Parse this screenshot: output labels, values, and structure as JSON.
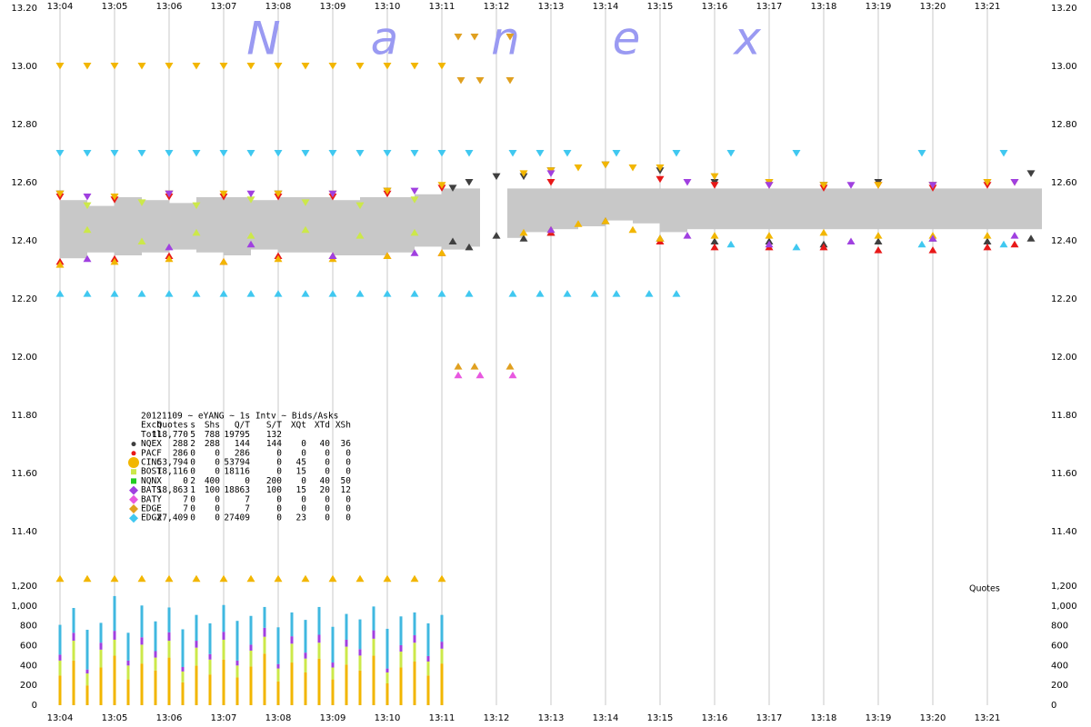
{
  "watermark": [
    "N",
    "a",
    "n",
    "e",
    "x"
  ],
  "legend_table": {
    "title": "20121109 ~ eYANG ~ 1s Intv ~ Bids/Asks",
    "columns": [
      "Exch",
      "Quotes",
      "s",
      "Shs",
      "Q/T",
      "S/T",
      "XQt",
      "XTd",
      "XSh"
    ],
    "total": {
      "label": "Totl",
      "stats": [
        "118,770",
        "5",
        "788",
        "19795",
        "132"
      ]
    }
  },
  "chart_data": [
    {
      "type": "band",
      "xlim": [
        784,
        802
      ],
      "xticks": [
        {
          "value": 784,
          "label": "13:04"
        },
        {
          "value": 785,
          "label": "13:05"
        },
        {
          "value": 786,
          "label": "13:06"
        },
        {
          "value": 787,
          "label": "13:07"
        },
        {
          "value": 788,
          "label": "13:08"
        },
        {
          "value": 789,
          "label": "13:09"
        },
        {
          "value": 790,
          "label": "13:10"
        },
        {
          "value": 791,
          "label": "13:11"
        },
        {
          "value": 792,
          "label": "13:12"
        },
        {
          "value": 793,
          "label": "13:13"
        },
        {
          "value": 794,
          "label": "13:14"
        },
        {
          "value": 795,
          "label": "13:15"
        },
        {
          "value": 796,
          "label": "13:16"
        },
        {
          "value": 797,
          "label": "13:17"
        },
        {
          "value": 798,
          "label": "13:18"
        },
        {
          "value": 799,
          "label": "13:19"
        },
        {
          "value": 800,
          "label": "13:20"
        },
        {
          "value": 801,
          "label": "13:21"
        }
      ],
      "ylim": [
        11.2,
        13.2
      ],
      "yticks": [
        {
          "value": 11.4,
          "label": "11.40"
        },
        {
          "value": 11.6,
          "label": "11.60"
        },
        {
          "value": 11.8,
          "label": "11.80"
        },
        {
          "value": 12.0,
          "label": "12.00"
        },
        {
          "value": 12.2,
          "label": "12.20"
        },
        {
          "value": 12.4,
          "label": "12.40"
        },
        {
          "value": 12.6,
          "label": "12.60"
        },
        {
          "value": 12.8,
          "label": "12.80"
        },
        {
          "value": 13.0,
          "label": "13.00"
        },
        {
          "value": 13.2,
          "label": "13.20"
        }
      ],
      "grid": true,
      "band_color": "#c8c8c8",
      "x": [
        784,
        784.5,
        785,
        785.5,
        786,
        786.5,
        787,
        787.5,
        788,
        788.5,
        789,
        789.5,
        790,
        790.5,
        791,
        791.5,
        791.7,
        792.2,
        792.5,
        793,
        793.5,
        794,
        794.5,
        795,
        795.5,
        796,
        797,
        798,
        799,
        800,
        801,
        801.75
      ],
      "ask": [
        12.54,
        12.52,
        12.55,
        12.54,
        12.53,
        12.55,
        12.55,
        12.54,
        12.55,
        12.55,
        12.54,
        12.55,
        12.55,
        12.56,
        12.58,
        12.58,
        null,
        12.58,
        12.58,
        12.58,
        12.58,
        12.58,
        12.58,
        12.58,
        12.58,
        12.58,
        12.58,
        12.58,
        12.58,
        12.58,
        12.58,
        12.58
      ],
      "bid": [
        12.34,
        12.36,
        12.35,
        12.36,
        12.37,
        12.36,
        12.35,
        12.37,
        12.36,
        12.36,
        12.35,
        12.35,
        12.36,
        12.38,
        12.37,
        12.38,
        null,
        12.41,
        12.43,
        12.44,
        12.45,
        12.47,
        12.46,
        12.43,
        12.44,
        12.44,
        12.44,
        12.44,
        12.44,
        12.44,
        12.44,
        12.44
      ],
      "series": [
        {
          "name": "NQEX",
          "color": "#3f3f3f",
          "marker": "circle",
          "stats": [
            "288",
            "2",
            "288",
            "144",
            "144",
            "0",
            "40",
            "36"
          ],
          "x": [
            784,
            786,
            788,
            790,
            791.2,
            791.5,
            792,
            792.5,
            793,
            794,
            795,
            796,
            797,
            798,
            799,
            800,
            801,
            801.8
          ],
          "ask": [
            12.56,
            12.56,
            12.56,
            12.57,
            12.58,
            12.6,
            12.62,
            12.62,
            12.64,
            12.66,
            12.64,
            12.6,
            12.6,
            12.59,
            12.6,
            12.59,
            12.6,
            12.63
          ],
          "bid": [
            null,
            null,
            null,
            null,
            12.4,
            12.38,
            12.42,
            12.41,
            12.43,
            12.47,
            12.41,
            12.4,
            12.4,
            12.39,
            12.4,
            12.41,
            12.4,
            12.41
          ]
        },
        {
          "name": "PACF",
          "color": "#e81818",
          "marker": "circle",
          "stats": [
            "286",
            "0",
            "0",
            "286",
            "0",
            "0",
            "0",
            "0"
          ],
          "x": [
            784,
            785,
            786,
            787,
            788,
            789,
            790,
            791,
            793,
            795,
            796,
            797,
            798,
            799,
            800,
            801,
            801.5
          ],
          "ask": [
            12.55,
            12.54,
            12.55,
            12.55,
            12.55,
            12.55,
            12.56,
            12.58,
            12.6,
            12.61,
            12.59,
            12.59,
            12.58,
            12.59,
            12.58,
            12.59,
            12.6
          ],
          "bid": [
            12.33,
            12.34,
            12.35,
            12.33,
            12.35,
            12.35,
            12.35,
            12.36,
            12.43,
            12.4,
            12.38,
            12.38,
            12.38,
            12.37,
            12.37,
            12.38,
            12.39
          ]
        },
        {
          "name": "CINC",
          "color": "#f2b600",
          "marker": "bigcircle",
          "stats": [
            "53,794",
            "0",
            "0",
            "53794",
            "0",
            "45",
            "0",
            "0"
          ],
          "x": [
            784,
            784.5,
            785,
            785.5,
            786,
            786.5,
            787,
            787.5,
            788,
            788.5,
            789,
            789.5,
            790,
            790.5,
            791,
            784,
            785,
            786,
            787,
            788,
            789,
            790,
            791,
            792.5,
            793,
            793.5,
            794,
            794.5,
            795,
            796,
            797,
            798,
            799,
            800,
            801
          ],
          "ask": [
            13.0,
            13.0,
            13.0,
            13.0,
            13.0,
            13.0,
            13.0,
            13.0,
            13.0,
            13.0,
            13.0,
            13.0,
            13.0,
            13.0,
            13.0,
            12.56,
            12.55,
            12.56,
            12.56,
            12.56,
            12.56,
            12.57,
            12.59,
            12.63,
            12.64,
            12.65,
            12.66,
            12.65,
            12.65,
            12.62,
            12.6,
            12.59,
            12.59,
            12.59,
            12.6
          ],
          "bid": [
            11.24,
            11.24,
            11.24,
            11.24,
            11.24,
            11.24,
            11.24,
            11.24,
            11.24,
            11.24,
            11.24,
            11.24,
            11.24,
            11.24,
            11.24,
            12.32,
            12.33,
            12.34,
            12.33,
            12.34,
            12.34,
            12.35,
            12.36,
            12.43,
            12.44,
            12.46,
            12.47,
            12.44,
            12.41,
            12.42,
            12.42,
            12.43,
            12.42,
            12.42,
            12.42
          ]
        },
        {
          "name": "BOST",
          "color": "#cce84a",
          "marker": "square",
          "stats": [
            "18,116",
            "0",
            "0",
            "18116",
            "0",
            "15",
            "0",
            "0"
          ],
          "x": [
            784.5,
            785.5,
            786.5,
            787.5,
            788.5,
            789.5,
            790.5
          ],
          "ask": [
            12.52,
            12.53,
            12.52,
            12.54,
            12.53,
            12.52,
            12.54
          ],
          "bid": [
            12.44,
            12.4,
            12.43,
            12.42,
            12.44,
            12.42,
            12.43
          ]
        },
        {
          "name": "NQNX",
          "color": "#22cc22",
          "marker": "square",
          "stats": [
            "0",
            "2",
            "400",
            "0",
            "200",
            "0",
            "40",
            "50"
          ],
          "x": [],
          "ask": [],
          "bid": []
        },
        {
          "name": "BATS",
          "color": "#a040e0",
          "marker": "diamond",
          "stats": [
            "18,863",
            "1",
            "100",
            "18863",
            "100",
            "15",
            "20",
            "12"
          ],
          "x": [
            784.5,
            786,
            787.5,
            789,
            790.5,
            793,
            795.5,
            797,
            798.5,
            800,
            801.5
          ],
          "ask": [
            12.55,
            12.56,
            12.56,
            12.56,
            12.57,
            12.63,
            12.6,
            12.59,
            12.59,
            12.59,
            12.6
          ],
          "bid": [
            12.34,
            12.38,
            12.39,
            12.35,
            12.36,
            12.44,
            12.42,
            12.39,
            12.4,
            12.41,
            12.42
          ]
        },
        {
          "name": "BATY",
          "color": "#e858e0",
          "marker": "diamond",
          "stats": [
            "7",
            "0",
            "0",
            "7",
            "0",
            "0",
            "0",
            "0"
          ],
          "x": [
            791.3,
            791.7,
            792.3
          ],
          "ask": [
            null,
            null,
            null
          ],
          "bid": [
            11.94,
            11.94,
            11.94
          ]
        },
        {
          "name": "EDGE",
          "color": "#e0a020",
          "marker": "diamond",
          "stats": [
            "7",
            "0",
            "0",
            "7",
            "0",
            "0",
            "0",
            "0"
          ],
          "x": [
            791.3,
            791.6,
            792.25,
            791.35,
            791.7,
            792.25
          ],
          "ask": [
            13.1,
            13.1,
            13.1,
            12.95,
            12.95,
            12.95
          ],
          "bid": [
            11.97,
            11.97,
            11.97,
            null,
            null,
            null
          ]
        },
        {
          "name": "EDGX",
          "color": "#40c8f0",
          "marker": "diamond",
          "stats": [
            "27,409",
            "0",
            "0",
            "27409",
            "0",
            "23",
            "0",
            "0"
          ],
          "x": [
            784,
            784.5,
            785,
            785.5,
            786,
            786.5,
            787,
            787.5,
            788,
            788.5,
            789,
            789.5,
            790,
            790.5,
            791,
            791.5,
            792.3,
            792.8,
            793.3,
            793.8,
            794.2,
            794.8,
            795.3,
            796.3,
            797.5,
            799.8,
            801.3
          ],
          "ask": [
            12.7,
            12.7,
            12.7,
            12.7,
            12.7,
            12.7,
            12.7,
            12.7,
            12.7,
            12.7,
            12.7,
            12.7,
            12.7,
            12.7,
            12.7,
            12.7,
            12.7,
            12.7,
            12.7,
            null,
            12.7,
            null,
            12.7,
            12.7,
            12.7,
            12.7,
            12.7
          ],
          "bid": [
            12.22,
            12.22,
            12.22,
            12.22,
            12.22,
            12.22,
            12.22,
            12.22,
            12.22,
            12.22,
            12.22,
            12.22,
            12.22,
            12.22,
            12.22,
            12.22,
            12.22,
            12.22,
            12.22,
            12.22,
            12.22,
            12.22,
            12.22,
            12.39,
            12.38,
            12.39,
            12.39
          ]
        }
      ]
    },
    {
      "type": "bar",
      "stacked": true,
      "title": "Quotes",
      "xlim": [
        784,
        802
      ],
      "ylim": [
        0,
        1200
      ],
      "yticks": [
        0,
        200,
        400,
        600,
        800,
        {
          "value": 1000,
          "label": "1,000"
        },
        {
          "value": 1200,
          "label": "1,200"
        }
      ],
      "x": [
        784,
        784.25,
        784.5,
        784.75,
        785,
        785.25,
        785.5,
        785.75,
        786,
        786.25,
        786.5,
        786.75,
        787,
        787.25,
        787.5,
        787.75,
        788,
        788.25,
        788.5,
        788.75,
        789,
        789.25,
        789.5,
        789.75,
        790,
        790.25,
        790.5,
        790.75,
        791
      ],
      "series": [
        {
          "name": "CINC",
          "color": "#f2b600",
          "values": [
            300,
            450,
            200,
            380,
            500,
            260,
            420,
            350,
            480,
            230,
            400,
            310,
            460,
            280,
            390,
            520,
            240,
            430,
            330,
            470,
            260,
            410,
            350,
            500,
            220,
            380,
            440,
            300,
            420
          ]
        },
        {
          "name": "BOST",
          "color": "#cce84a",
          "values": [
            150,
            200,
            120,
            180,
            160,
            140,
            190,
            130,
            170,
            110,
            180,
            150,
            200,
            120,
            160,
            170,
            130,
            190,
            140,
            160,
            120,
            180,
            150,
            170,
            110,
            160,
            190,
            140,
            150
          ]
        },
        {
          "name": "BATS",
          "color": "#a040e0",
          "values": [
            60,
            80,
            40,
            70,
            90,
            50,
            75,
            65,
            85,
            45,
            70,
            55,
            80,
            50,
            60,
            90,
            45,
            75,
            60,
            80,
            50,
            70,
            65,
            85,
            40,
            65,
            75,
            55,
            70
          ]
        },
        {
          "name": "EDGX",
          "color": "#40b8e0",
          "values": [
            300,
            250,
            400,
            200,
            350,
            280,
            320,
            300,
            250,
            380,
            260,
            310,
            270,
            400,
            290,
            210,
            370,
            240,
            330,
            280,
            360,
            260,
            300,
            240,
            400,
            290,
            230,
            330,
            270
          ]
        }
      ]
    }
  ]
}
